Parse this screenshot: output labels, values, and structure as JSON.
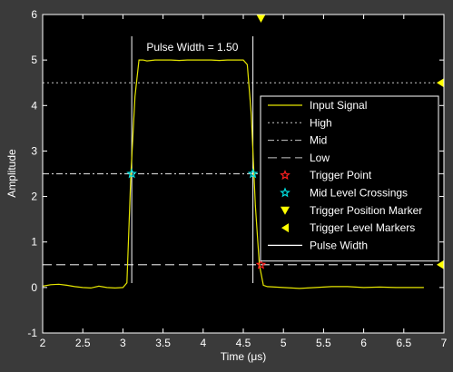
{
  "chart_data": {
    "type": "line",
    "xlabel": "Time (μs)",
    "ylabel": "Amplitude",
    "xlim": [
      2,
      7
    ],
    "ylim": [
      -1,
      6
    ],
    "xticks": [
      "2",
      "2.5",
      "3",
      "3.5",
      "4",
      "4.5",
      "5",
      "5.5",
      "6",
      "6.5",
      "7"
    ],
    "yticks": [
      "-1",
      "0",
      "1",
      "2",
      "3",
      "4",
      "5",
      "6"
    ],
    "grid": false,
    "legend_position": "right",
    "colors": {
      "background": "#000000",
      "frame": "#3a3a3a",
      "axis_text": "#ffffff",
      "signal": "#e6e600",
      "reference_lines": "#c8c8c8",
      "trigger_point": "#ff2020",
      "mid_crossings": "#00e0e0",
      "markers": "#ffff00",
      "pulse_width": "#ffffff"
    },
    "series": [
      {
        "name": "Input Signal",
        "x": [
          2.0,
          2.1,
          2.2,
          2.3,
          2.4,
          2.5,
          2.6,
          2.7,
          2.8,
          2.9,
          3.0,
          3.05,
          3.1,
          3.15,
          3.2,
          3.25,
          3.3,
          3.4,
          3.5,
          3.6,
          3.7,
          3.8,
          3.9,
          4.0,
          4.1,
          4.2,
          4.3,
          4.4,
          4.5,
          4.55,
          4.6,
          4.65,
          4.7,
          4.75,
          4.8,
          5.0,
          5.2,
          5.4,
          5.6,
          5.8,
          6.0,
          6.2,
          6.4,
          6.6,
          6.75
        ],
        "y": [
          0.03,
          0.06,
          0.07,
          0.05,
          0.02,
          0.0,
          -0.01,
          0.03,
          0.0,
          -0.01,
          0.0,
          0.1,
          2.5,
          4.2,
          5.0,
          5.0,
          4.98,
          5.0,
          5.0,
          5.0,
          4.99,
          5.0,
          5.0,
          5.0,
          5.0,
          4.99,
          5.0,
          5.0,
          5.0,
          4.9,
          3.8,
          1.8,
          0.5,
          0.05,
          0.02,
          0.0,
          -0.02,
          0.0,
          0.02,
          0.02,
          0.0,
          0.01,
          0.0,
          0.0,
          0.0
        ]
      },
      {
        "name": "High",
        "y": 4.5
      },
      {
        "name": "Mid",
        "y": 2.5
      },
      {
        "name": "Low",
        "y": 0.5
      },
      {
        "name": "Trigger Point",
        "points": [
          [
            4.72,
            0.5
          ]
        ]
      },
      {
        "name": "Mid Level Crossings",
        "points": [
          [
            3.11,
            2.5
          ],
          [
            4.62,
            2.5
          ]
        ]
      },
      {
        "name": "Trigger Position Marker",
        "points": [
          [
            4.72,
            6
          ]
        ]
      },
      {
        "name": "Trigger Level Markers",
        "points": [
          [
            7,
            4.5
          ],
          [
            7,
            0.5
          ]
        ]
      },
      {
        "name": "Pulse Width",
        "x": [
          3.11,
          4.62
        ]
      }
    ],
    "annotation": "Pulse Width = 1.50",
    "legend": [
      {
        "label": "Input Signal",
        "style": "solid"
      },
      {
        "label": "High",
        "style": "dotted"
      },
      {
        "label": "Mid",
        "style": "dashdot"
      },
      {
        "label": "Low",
        "style": "dashed"
      },
      {
        "label": "Trigger Point",
        "style": "star-red"
      },
      {
        "label": "Mid Level Crossings",
        "style": "star-cyan"
      },
      {
        "label": "Trigger Position Marker",
        "style": "tri-down"
      },
      {
        "label": "Trigger Level Markers",
        "style": "tri-left"
      },
      {
        "label": "Pulse Width",
        "style": "solid-white"
      }
    ]
  }
}
